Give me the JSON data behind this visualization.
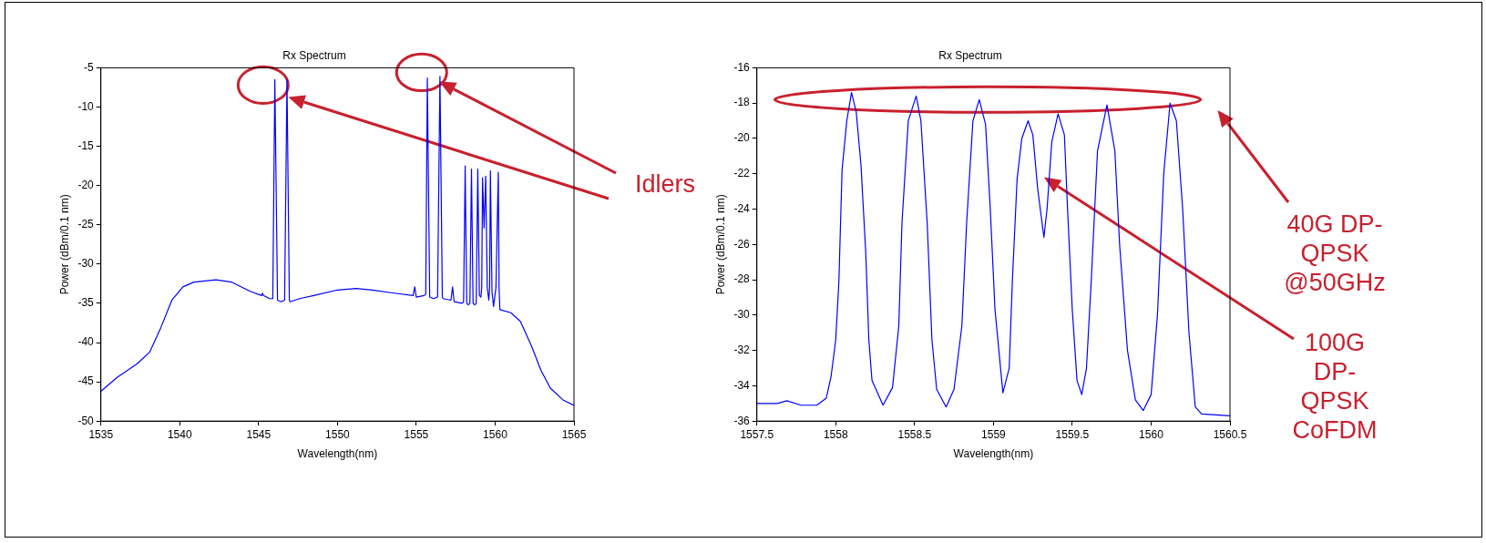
{
  "chart_data": [
    {
      "type": "line",
      "title": "Rx Spectrum",
      "xlabel": "Wavelength(nm)",
      "ylabel": "Power (dBm/0.1 nm)",
      "xlim": [
        1535,
        1565
      ],
      "ylim": [
        -50,
        -5
      ],
      "xticks": [
        1535,
        1540,
        1545,
        1550,
        1555,
        1560,
        1565
      ],
      "yticks": [
        -50,
        -45,
        -40,
        -35,
        -30,
        -25,
        -20,
        -15,
        -10,
        -5
      ],
      "marker": "none",
      "legend": false,
      "annotations": [
        "Idlers"
      ],
      "x": [
        1535,
        1536.05,
        1537.3,
        1538.1,
        1538.8,
        1539.5,
        1540.2,
        1540.9,
        1542.3,
        1543.3,
        1544.5,
        1545.2,
        1545.25,
        1545.3,
        1545.7,
        1545.9,
        1546.03,
        1546.2,
        1546.43,
        1546.65,
        1546.8,
        1546.95,
        1547.0,
        1547.6,
        1548.5,
        1550.0,
        1551.2,
        1552.2,
        1553.6,
        1554.8,
        1554.9,
        1555.0,
        1555.5,
        1555.6,
        1555.7,
        1555.85,
        1556.1,
        1556.35,
        1556.5,
        1556.65,
        1556.7,
        1557.2,
        1557.3,
        1557.4,
        1557.9,
        1558.0,
        1558.1,
        1558.2,
        1558.3,
        1558.4,
        1558.5,
        1558.6,
        1558.7,
        1558.8,
        1558.9,
        1559.0,
        1559.1,
        1559.15,
        1559.2,
        1559.3,
        1559.4,
        1559.5,
        1559.6,
        1559.65,
        1559.7,
        1559.8,
        1559.9,
        1560.05,
        1560.2,
        1560.25,
        1560.3,
        1561.0,
        1561.6,
        1562.3,
        1562.9,
        1563.5,
        1564.3,
        1565
      ],
      "series": [
        {
          "color": "#0000ff",
          "values": [
            -46.2,
            -44.4,
            -42.7,
            -41.2,
            -38.1,
            -34.6,
            -32.9,
            -32.3,
            -32.0,
            -32.3,
            -33.5,
            -34.0,
            -33.7,
            -34.0,
            -34.4,
            -34.4,
            -6.5,
            -34.6,
            -34.8,
            -34.6,
            -6.5,
            -34.6,
            -34.8,
            -34.4,
            -34.0,
            -33.3,
            -33.1,
            -33.3,
            -33.7,
            -34.0,
            -32.9,
            -34.2,
            -34.0,
            -33.8,
            -6.3,
            -34.2,
            -34.4,
            -34.2,
            -6.1,
            -34.2,
            -34.4,
            -34.6,
            -32.9,
            -34.8,
            -35.0,
            -34.8,
            -17.5,
            -35.0,
            -35.2,
            -35.0,
            -17.9,
            -35.0,
            -35.2,
            -35.0,
            -17.9,
            -34.0,
            -34.2,
            -33.0,
            -19.0,
            -25.4,
            -18.8,
            -33.0,
            -34.6,
            -33.0,
            -18.1,
            -33.5,
            -35.4,
            -33.0,
            -18.3,
            -33.0,
            -35.8,
            -36.2,
            -37.3,
            -40.4,
            -43.5,
            -45.8,
            -47.3,
            -48.0
          ]
        }
      ]
    },
    {
      "type": "line",
      "title": "Rx Spectrum",
      "xlabel": "Wavelength(nm)",
      "ylabel": "Power (dBm/0.1 nm)",
      "xlim": [
        1557.5,
        1560.5
      ],
      "ylim": [
        -36,
        -16
      ],
      "xticks": [
        1557.5,
        1558,
        1558.5,
        1559,
        1559.5,
        1560,
        1560.5
      ],
      "yticks": [
        -36,
        -34,
        -32,
        -30,
        -28,
        -26,
        -24,
        -22,
        -20,
        -18,
        -16
      ],
      "marker": "none",
      "legend": false,
      "annotations": [
        "40G DP-QPSK @50GHz",
        "100G DP-QPSK CoFDM"
      ],
      "x": [
        1557.5,
        1557.63,
        1557.69,
        1557.78,
        1557.88,
        1557.94,
        1557.97,
        1558.0,
        1558.02,
        1558.04,
        1558.07,
        1558.1,
        1558.13,
        1558.16,
        1558.19,
        1558.21,
        1558.23,
        1558.3,
        1558.36,
        1558.4,
        1558.42,
        1558.46,
        1558.51,
        1558.54,
        1558.58,
        1558.61,
        1558.64,
        1558.7,
        1558.75,
        1558.8,
        1558.83,
        1558.87,
        1558.91,
        1558.95,
        1558.98,
        1559.01,
        1559.06,
        1559.1,
        1559.12,
        1559.15,
        1559.18,
        1559.22,
        1559.25,
        1559.28,
        1559.32,
        1559.34,
        1559.37,
        1559.41,
        1559.45,
        1559.47,
        1559.5,
        1559.53,
        1559.56,
        1559.59,
        1559.62,
        1559.66,
        1559.72,
        1559.77,
        1559.8,
        1559.85,
        1559.9,
        1559.95,
        1560.0,
        1560.04,
        1560.08,
        1560.12,
        1560.16,
        1560.2,
        1560.24,
        1560.28,
        1560.32,
        1560.5
      ],
      "series": [
        {
          "color": "#0000ff",
          "values": [
            -35.0,
            -35.0,
            -34.85,
            -35.1,
            -35.1,
            -34.7,
            -33.5,
            -31.4,
            -28.1,
            -21.8,
            -19.0,
            -17.4,
            -18.5,
            -21.5,
            -26.4,
            -31.4,
            -33.7,
            -35.1,
            -34.1,
            -30.6,
            -24.8,
            -19.0,
            -17.6,
            -19.0,
            -24.8,
            -31.4,
            -34.2,
            -35.2,
            -34.2,
            -30.6,
            -24.8,
            -19.0,
            -17.8,
            -19.2,
            -24.0,
            -29.7,
            -34.4,
            -33.0,
            -28.1,
            -22.3,
            -20.0,
            -19.0,
            -19.8,
            -22.8,
            -25.6,
            -24.0,
            -20.2,
            -18.6,
            -19.8,
            -24.0,
            -29.7,
            -33.7,
            -34.5,
            -33.0,
            -28.1,
            -20.7,
            -18.1,
            -20.7,
            -26.0,
            -32.0,
            -34.8,
            -35.4,
            -34.5,
            -30.0,
            -22.0,
            -18.0,
            -19.0,
            -24.0,
            -31.0,
            -35.2,
            -35.6,
            -35.7
          ]
        }
      ]
    }
  ]
}
